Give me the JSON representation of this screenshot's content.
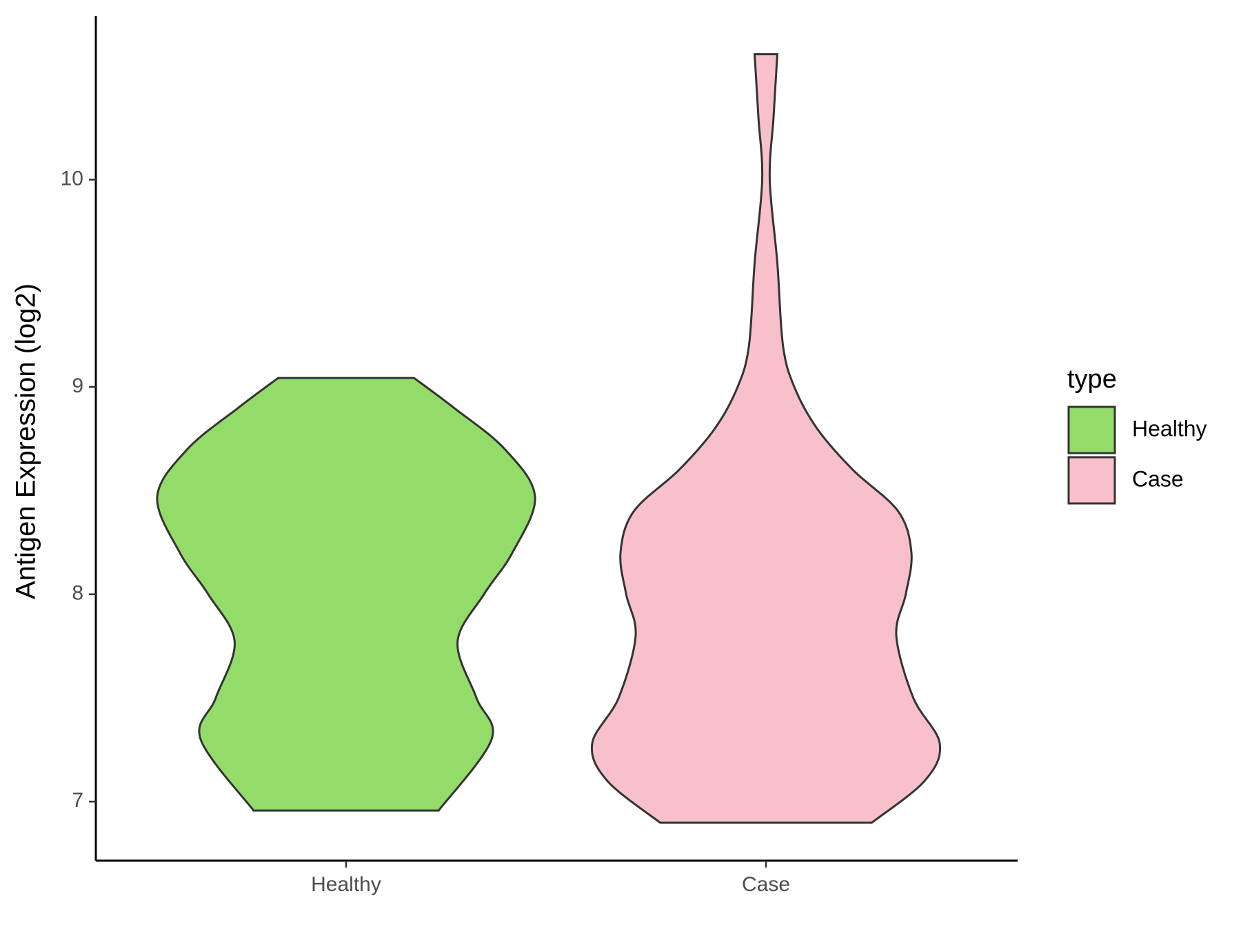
{
  "chart_data": {
    "type": "violin",
    "y_label": "Antigen Expression (log2)",
    "categories": [
      "Healthy",
      "Case"
    ],
    "legend_title": "type",
    "legend_position": "right",
    "ylim": [
      6.715,
      10.79
    ],
    "yticks": [
      7,
      8,
      9,
      10
    ],
    "series": [
      {
        "name": "Healthy",
        "color": "#93dc6a",
        "y": [
          6.957,
          7.3,
          7.5,
          7.77,
          8.0,
          8.2,
          8.47,
          8.7,
          8.9,
          9.043
        ],
        "density": [
          0.49,
          0.77,
          0.69,
          0.59,
          0.73,
          0.88,
          1.0,
          0.84,
          0.57,
          0.36
        ]
      },
      {
        "name": "Case",
        "color": "#f8c0cb",
        "y": [
          6.898,
          7.1,
          7.28,
          7.5,
          7.8,
          8.0,
          8.2,
          8.4,
          8.6,
          8.8,
          9.0,
          9.2,
          9.6,
          10.0,
          10.3,
          10.605
        ],
        "density": [
          0.56,
          0.84,
          0.92,
          0.78,
          0.69,
          0.74,
          0.77,
          0.7,
          0.46,
          0.27,
          0.15,
          0.09,
          0.06,
          0.02,
          0.04,
          0.06
        ]
      }
    ]
  }
}
